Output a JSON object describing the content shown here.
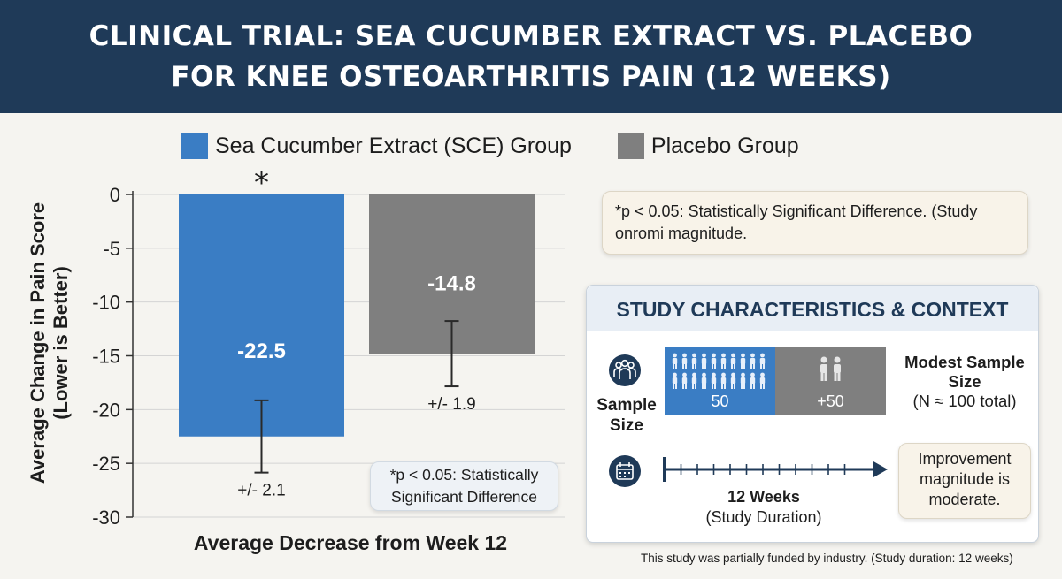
{
  "header": {
    "title_line1": "CLINICAL TRIAL: SEA CUCUMBER EXTRACT VS. PLACEBO",
    "title_line2": "FOR KNEE OSTEOARTHRITIS PAIN (12 WEEKS)"
  },
  "colors": {
    "header_bg": "#1f3a58",
    "sce": "#3a7dc4",
    "placebo": "#7f7f7f"
  },
  "chart_data": {
    "type": "bar",
    "title": "CLINICAL TRIAL: SEA CUCUMBER EXTRACT VS. PLACEBO FOR KNEE OSTEOARTHRITIS PAIN (12 WEEKS)",
    "categories": [
      "Sea Cucumber Extract (SCE) Group",
      "Placebo Group"
    ],
    "values": [
      -22.5,
      -14.8
    ],
    "value_labels": [
      "-22.5",
      "-14.8"
    ],
    "errors": [
      2.1,
      1.9
    ],
    "error_labels": [
      "+/- 2.1",
      "+/- 1.9"
    ],
    "colors": [
      "#3a7dc4",
      "#7f7f7f"
    ],
    "significance_marker": "*",
    "ylabel_line1": "Average Change in Pain Score",
    "ylabel_line2": "(Lower is Better)",
    "xlabel": "Average Decrease from Week 12",
    "ylim": [
      -30,
      0
    ],
    "yticks": [
      0,
      -5,
      -10,
      -15,
      -20,
      -25,
      -30
    ],
    "ytick_labels": [
      "0",
      "-5",
      "-10",
      "-15",
      "-20",
      "-25",
      "-30"
    ],
    "grid": true,
    "legend": "top"
  },
  "legend": {
    "sce_label": "Sea Cucumber Extract (SCE) Group",
    "placebo_label": "Placebo Group"
  },
  "chart_note": "*p < 0.05: Statistically Significant Difference",
  "top_note": "*p < 0.05: Statistically Significant Difference. (Study onromi magnitude.",
  "panel": {
    "title": "STUDY CHARACTERISTICS & CONTEXT",
    "sample_label": "Sample Size",
    "sce_count": "50",
    "placebo_count": "+50",
    "modest_bold": "Modest Sample Size",
    "modest_detail": "(N ≈ 100 total)",
    "weeks_bold": "12 Weeks",
    "weeks_detail": "(Study Duration)",
    "improvement_note": "Improvement magnitude is moderate.",
    "people_icon": "people-group-icon",
    "calendar_icon": "calendar-icon"
  },
  "footnote": "This study was partially funded by industry. (Study duration: 12 weeks)"
}
